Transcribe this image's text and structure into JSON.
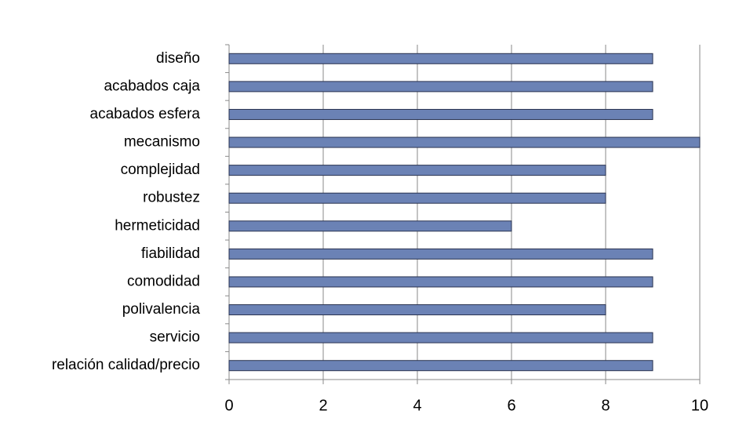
{
  "chart_data": {
    "type": "bar",
    "orientation": "horizontal",
    "categories": [
      "diseño",
      "acabados caja",
      "acabados esfera",
      "mecanismo",
      "complejidad",
      "robustez",
      "hermeticidad",
      "fiabilidad",
      "comodidad",
      "polivalencia",
      "servicio",
      "relación calidad/precio"
    ],
    "values": [
      9,
      9,
      9,
      10,
      8,
      8,
      6,
      9,
      9,
      8,
      9,
      9
    ],
    "color": "#6b82b5",
    "xlim": [
      0,
      10
    ],
    "xticks": [
      0,
      2,
      4,
      6,
      8,
      10
    ],
    "grid": true
  }
}
